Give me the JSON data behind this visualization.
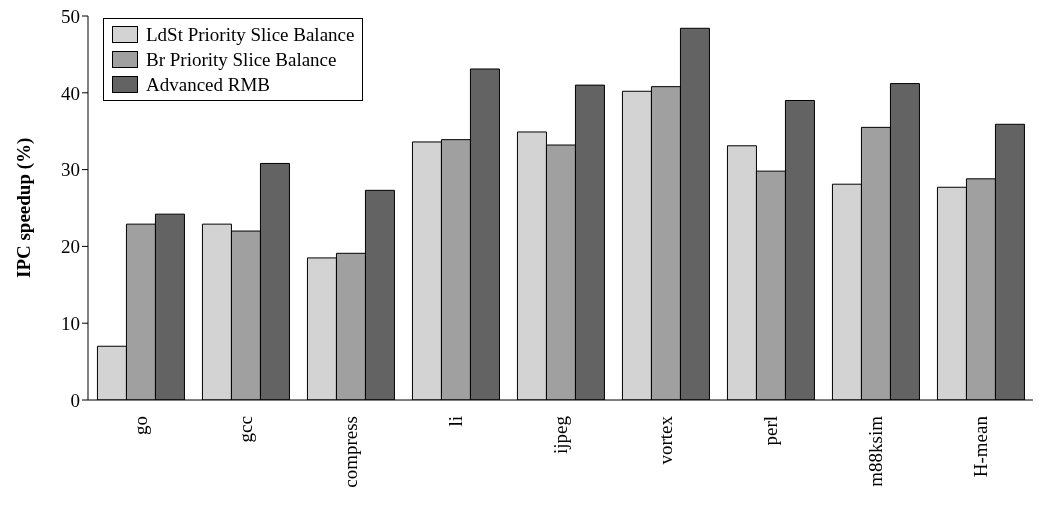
{
  "chart_data": {
    "type": "bar",
    "ylabel": "IPC speedup (%)",
    "categories": [
      "go",
      "gcc",
      "compress",
      "li",
      "ijpeg",
      "vortex",
      "perl",
      "m88ksim",
      "H-mean"
    ],
    "series": [
      {
        "name": "LdSt Priority Slice Balance",
        "color": "#d3d3d3",
        "values": [
          7,
          22.9,
          18.5,
          33.6,
          34.9,
          40.2,
          33.1,
          28.1,
          27.7
        ]
      },
      {
        "name": "Br Priority Slice Balance",
        "color": "#a0a0a0",
        "values": [
          22.9,
          22,
          19.1,
          33.9,
          33.2,
          40.8,
          29.8,
          35.5,
          28.8
        ]
      },
      {
        "name": "Advanced RMB",
        "color": "#636363",
        "values": [
          24.2,
          30.8,
          27.3,
          43.1,
          41,
          48.4,
          39,
          41.2,
          35.9
        ]
      }
    ],
    "ylim": [
      0,
      50
    ],
    "yticks": [
      0,
      10,
      20,
      30,
      40,
      50
    ],
    "grid": false,
    "legend": "top left"
  }
}
